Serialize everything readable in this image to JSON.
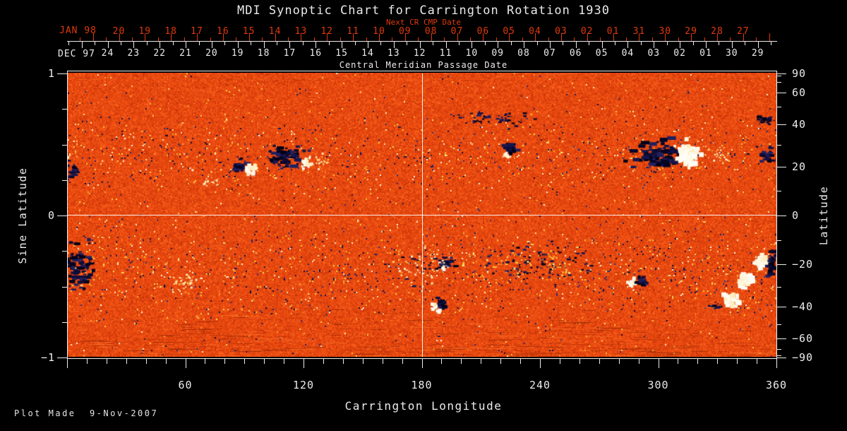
{
  "title": "MDI Synoptic Chart for Carrington Rotation 1930",
  "subtitle_top": "Next CR CMP Date",
  "cmp_axis_label": "Central Meridian Passage Date",
  "footer": {
    "plot_made": "Plot Made  9-Nov-2007"
  },
  "colors": {
    "background": "#000000",
    "axis_red": "#e0390b",
    "text_white": "#ececec",
    "reference_line": "#ffffff",
    "base_orange": "#e8480f",
    "negative_polarity": "#10103f",
    "positive_polarity": "#fff8e6"
  },
  "axes": {
    "top_red": {
      "era_label": "JAN 98",
      "dates": [
        "20",
        "19",
        "18",
        "17",
        "16",
        "15",
        "14",
        "13",
        "12",
        "11",
        "10",
        "09",
        "08",
        "07",
        "06",
        "05",
        "04",
        "03",
        "02",
        "01",
        "31",
        "30",
        "29",
        "28",
        "27"
      ]
    },
    "top_white": {
      "era_label": "DEC 97",
      "dates": [
        "24",
        "23",
        "22",
        "21",
        "20",
        "19",
        "18",
        "17",
        "16",
        "15",
        "14",
        "13",
        "12",
        "11",
        "10",
        "09",
        "08",
        "07",
        "06",
        "05",
        "04",
        "03",
        "02",
        "01",
        "30",
        "29"
      ]
    },
    "bottom": {
      "label": "Carrington Longitude",
      "major_ticks": [
        0,
        60,
        120,
        180,
        240,
        300,
        360
      ],
      "tick_labels": [
        "60",
        "120",
        "180",
        "240",
        "300",
        "360"
      ],
      "minor_step_deg": 10
    },
    "left": {
      "label": "Sine Latitude",
      "tick_labels": [
        "1",
        "0",
        "−1"
      ],
      "tick_values": [
        1,
        0,
        -1
      ],
      "minor_step": 0.25
    },
    "right": {
      "label": "Latitude",
      "tick_labels": [
        "90",
        "60",
        "40",
        "20",
        "0",
        "−20",
        "−40",
        "−60",
        "−90"
      ],
      "tick_values": [
        90,
        60,
        40,
        20,
        0,
        -20,
        -40,
        -60,
        -90
      ],
      "minor_tick_values": [
        80,
        70,
        50,
        30,
        10,
        -10,
        -30,
        -50,
        -70,
        -80
      ]
    }
  },
  "chart_data": {
    "type": "heatmap",
    "title": "MDI Synoptic Chart for Carrington Rotation 1930",
    "description": "Full-surface solar synoptic magnetogram for Carrington rotation 1930. Orange-red speckled field is the quiet-Sun signal; dark navy blobs are negative magnetic polarity, white/cream blobs are positive polarity. White reference lines mark Carrington longitude 180 and sine latitude 0.",
    "x": {
      "label": "Carrington Longitude",
      "range": [
        0,
        360
      ]
    },
    "y_left": {
      "label": "Sine Latitude",
      "range": [
        -1,
        1
      ]
    },
    "y_right": {
      "label": "Latitude",
      "range": [
        -90,
        90
      ],
      "scale": "sine"
    },
    "cmp_date_axis": {
      "label": "Central Meridian Passage Date",
      "current_rotation": {
        "era": "DEC 97",
        "dates": [
          "24",
          "23",
          "22",
          "21",
          "20",
          "19",
          "18",
          "17",
          "16",
          "15",
          "14",
          "13",
          "12",
          "11",
          "10",
          "09",
          "08",
          "07",
          "06",
          "05",
          "04",
          "03",
          "02",
          "01",
          "30",
          "29"
        ]
      },
      "next_rotation": {
        "era": "JAN 98",
        "label": "Next CR CMP Date",
        "dates": [
          "20",
          "19",
          "18",
          "17",
          "16",
          "15",
          "14",
          "13",
          "12",
          "11",
          "10",
          "09",
          "08",
          "07",
          "06",
          "05",
          "04",
          "03",
          "02",
          "01",
          "31",
          "30",
          "29",
          "28",
          "27"
        ]
      }
    },
    "reference_lines": {
      "longitude": 180,
      "sine_latitude": 0
    },
    "plot_made": "9-Nov-2007",
    "active_regions": [
      {
        "lon": 87.8,
        "sine_lat": 0.348,
        "kind": "dark",
        "sx": 5,
        "sy": 5,
        "n": 26,
        "smin": 2,
        "smax": 5
      },
      {
        "lon": 92.4,
        "sine_lat": 0.313,
        "kind": "bright",
        "sx": 5,
        "sy": 4,
        "n": 22,
        "smin": 2,
        "smax": 6
      },
      {
        "lon": 111.0,
        "sine_lat": 0.413,
        "kind": "dark",
        "sx": 14,
        "sy": 9,
        "n": 70,
        "smin": 2,
        "smax": 5
      },
      {
        "lon": 121.1,
        "sine_lat": 0.368,
        "kind": "bright",
        "sx": 5,
        "sy": 5,
        "n": 26,
        "smin": 2,
        "smax": 6
      },
      {
        "lon": 127.2,
        "sine_lat": 0.378,
        "kind": "plage",
        "sx": 9,
        "sy": 7,
        "n": 20,
        "smin": 1,
        "smax": 3
      },
      {
        "lon": 73.4,
        "sine_lat": 0.254,
        "kind": "plage",
        "sx": 12,
        "sy": 8,
        "n": 22,
        "smin": 1,
        "smax": 3
      },
      {
        "lon": 216.7,
        "sine_lat": 0.672,
        "kind": "dark",
        "sx": 28,
        "sy": 6,
        "n": 55,
        "smin": 1,
        "smax": 3
      },
      {
        "lon": 225.0,
        "sine_lat": 0.463,
        "kind": "dark",
        "sx": 5,
        "sy": 5,
        "n": 24,
        "smin": 2,
        "smax": 5
      },
      {
        "lon": 222.5,
        "sine_lat": 0.418,
        "kind": "bright",
        "sx": 3,
        "sy": 3,
        "n": 12,
        "smin": 2,
        "smax": 4
      },
      {
        "lon": 299.1,
        "sine_lat": 0.418,
        "kind": "dark",
        "sx": 16,
        "sy": 10,
        "n": 95,
        "smin": 2,
        "smax": 6
      },
      {
        "lon": 314.5,
        "sine_lat": 0.433,
        "kind": "bright",
        "sx": 9,
        "sy": 8,
        "n": 75,
        "smin": 3,
        "smax": 7
      },
      {
        "lon": 316.0,
        "sine_lat": 0.373,
        "kind": "core",
        "sx": 5,
        "sy": 5,
        "n": 22,
        "smin": 3,
        "smax": 8
      },
      {
        "lon": 329.6,
        "sine_lat": 0.428,
        "kind": "plage",
        "sx": 12,
        "sy": 8,
        "n": 28,
        "smin": 1,
        "smax": 3
      },
      {
        "lon": 354.6,
        "sine_lat": 0.672,
        "kind": "dark",
        "sx": 7,
        "sy": 4,
        "n": 24,
        "smin": 1,
        "smax": 4
      },
      {
        "lon": 355.3,
        "sine_lat": 0.423,
        "kind": "dark",
        "sx": 7,
        "sy": 6,
        "n": 30,
        "smin": 2,
        "smax": 4
      },
      {
        "lon": 2.9,
        "sine_lat": 0.303,
        "kind": "dark",
        "sx": 5,
        "sy": 6,
        "n": 24,
        "smin": 2,
        "smax": 4
      },
      {
        "lon": 5.4,
        "sine_lat": -0.368,
        "kind": "dark",
        "sx": 10,
        "sy": 16,
        "n": 85,
        "smin": 2,
        "smax": 5
      },
      {
        "lon": 190.9,
        "sine_lat": -0.363,
        "kind": "bright",
        "sx": 4,
        "sy": 4,
        "n": 18,
        "smin": 2,
        "smax": 5
      },
      {
        "lon": 193.4,
        "sine_lat": -0.338,
        "kind": "dark",
        "sx": 4,
        "sy": 4,
        "n": 16,
        "smin": 2,
        "smax": 4
      },
      {
        "lon": 189.9,
        "sine_lat": -0.627,
        "kind": "dark",
        "sx": 4,
        "sy": 4,
        "n": 22,
        "smin": 2,
        "smax": 5
      },
      {
        "lon": 187.0,
        "sine_lat": -0.657,
        "kind": "bright",
        "sx": 4,
        "sy": 3,
        "n": 14,
        "smin": 2,
        "smax": 5
      },
      {
        "lon": 238.2,
        "sine_lat": -0.318,
        "kind": "dark",
        "sx": 55,
        "sy": 15,
        "n": 95,
        "smin": 1,
        "smax": 3
      },
      {
        "lon": 238.2,
        "sine_lat": -0.328,
        "kind": "gold",
        "sx": 50,
        "sy": 14,
        "n": 55,
        "smin": 1,
        "smax": 3
      },
      {
        "lon": 286.6,
        "sine_lat": -0.483,
        "kind": "bright",
        "sx": 4,
        "sy": 4,
        "n": 18,
        "smin": 2,
        "smax": 5
      },
      {
        "lon": 292.0,
        "sine_lat": -0.473,
        "kind": "dark",
        "sx": 4,
        "sy": 4,
        "n": 16,
        "smin": 2,
        "smax": 4
      },
      {
        "lon": 337.0,
        "sine_lat": -0.6,
        "kind": "bright",
        "sx": 6,
        "sy": 5,
        "n": 50,
        "smin": 3,
        "smax": 7
      },
      {
        "lon": 345.0,
        "sine_lat": -0.47,
        "kind": "bright",
        "sx": 6,
        "sy": 5,
        "n": 55,
        "smin": 3,
        "smax": 8
      },
      {
        "lon": 352.5,
        "sine_lat": -0.33,
        "kind": "bright",
        "sx": 5,
        "sy": 5,
        "n": 45,
        "smin": 3,
        "smax": 7
      },
      {
        "lon": 357.5,
        "sine_lat": -0.343,
        "kind": "dark",
        "sx": 3,
        "sy": 10,
        "n": 40,
        "smin": 2,
        "smax": 5
      },
      {
        "lon": 329.6,
        "sine_lat": -0.642,
        "kind": "dark",
        "sx": 5,
        "sy": 3,
        "n": 18,
        "smin": 1,
        "smax": 3
      },
      {
        "lon": 60.9,
        "sine_lat": -0.468,
        "kind": "plage",
        "sx": 13,
        "sy": 8,
        "n": 40,
        "smin": 1,
        "smax": 3
      },
      {
        "lon": 179.1,
        "sine_lat": -0.343,
        "kind": "plage",
        "sx": 20,
        "sy": 14,
        "n": 60,
        "smin": 1,
        "smax": 3
      },
      {
        "lon": 181.0,
        "sine_lat": -0.36,
        "kind": "dark",
        "sx": 19,
        "sy": 13,
        "n": 28,
        "smin": 1,
        "smax": 3
      }
    ]
  }
}
